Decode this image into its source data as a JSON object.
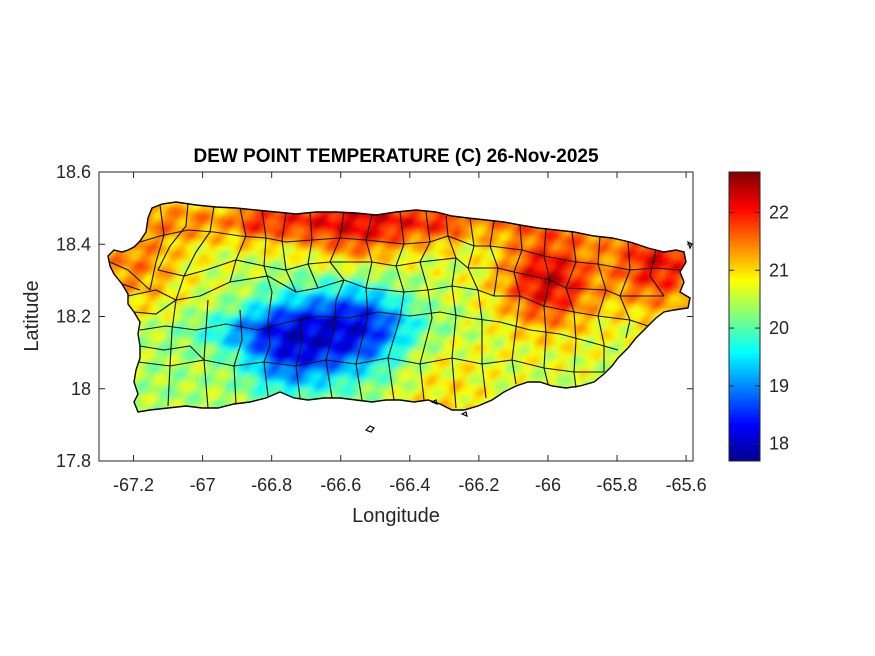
{
  "figure": {
    "title": "DEW POINT TEMPERATURE (C) 26-Nov-2025"
  },
  "chart_data": {
    "type": "heatmap",
    "title": "DEW POINT TEMPERATURE (C) 26-Nov-2025",
    "xlabel": "Longitude",
    "ylabel": "Latitude",
    "xlim": [
      -67.3,
      -65.58
    ],
    "ylim": [
      17.8,
      18.6
    ],
    "x_ticks": [
      -67.2,
      -67.0,
      -66.8,
      -66.6,
      -66.4,
      -66.2,
      -66.0,
      -65.8,
      -65.6
    ],
    "x_tick_labels": [
      "-67.2",
      "-67",
      "-66.8",
      "-66.6",
      "-66.4",
      "-66.2",
      "-66",
      "-65.8",
      "-65.6"
    ],
    "y_ticks": [
      18.6,
      18.4,
      18.2,
      18.0,
      17.8
    ],
    "y_tick_labels": [
      "18.6",
      "18.4",
      "18.2",
      "18",
      "17.8"
    ],
    "colorbar": {
      "colormap": "jet",
      "range": [
        17.7,
        22.7
      ],
      "ticks": [
        22,
        21,
        20,
        19,
        18
      ],
      "tick_labels": [
        "22",
        "21",
        "20",
        "19",
        "18"
      ]
    },
    "grid": false,
    "field_features": [
      {
        "feature": "north-coast-high",
        "lon": -66.55,
        "lat": 18.47,
        "value": 22.3
      },
      {
        "feature": "northeast-max",
        "lon": -66.0,
        "lat": 18.3,
        "value": 22.6
      },
      {
        "feature": "east-coast-high",
        "lon": -65.68,
        "lat": 18.35,
        "value": 22.4
      },
      {
        "feature": "west-high",
        "lon": -67.2,
        "lat": 18.35,
        "value": 21.6
      },
      {
        "feature": "central-cordillera-min",
        "lon": -66.75,
        "lat": 18.12,
        "value": 18.0
      },
      {
        "feature": "central-cordillera-min-2",
        "lon": -66.55,
        "lat": 18.17,
        "value": 18.1
      },
      {
        "feature": "south-coast-moderate",
        "lon": -66.3,
        "lat": 17.98,
        "value": 21.0
      },
      {
        "feature": "southwest-moderate",
        "lon": -67.1,
        "lat": 18.0,
        "value": 20.3
      }
    ]
  }
}
